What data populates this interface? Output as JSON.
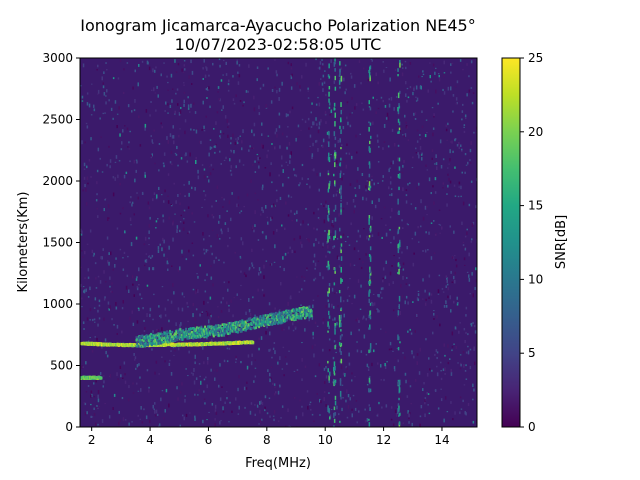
{
  "chart_data": {
    "type": "heatmap",
    "title_line1": "Ionogram Jicamarca-Ayacucho Polarization NE45°",
    "title_line2": "10/07/2023-02:58:05 UTC",
    "xlabel": "Freq(MHz)",
    "ylabel": "Kilometers(Km)",
    "xlim": [
      1.6,
      15.2
    ],
    "ylim": [
      0,
      3000
    ],
    "x_ticks": [
      "2",
      "4",
      "6",
      "8",
      "10",
      "12",
      "14"
    ],
    "y_ticks": [
      "0",
      "500",
      "1000",
      "1500",
      "2000",
      "2500",
      "3000"
    ],
    "colorbar": {
      "label": "SNR[dB]",
      "range": [
        0,
        25
      ],
      "ticks": [
        "0",
        "5",
        "10",
        "15",
        "20",
        "25"
      ],
      "colormap": "viridis"
    },
    "background_snr_db": 2,
    "traces": [
      {
        "name_hint": "E-layer echo",
        "x": [
          1.6,
          2.3
        ],
        "y": [
          410,
          410
        ],
        "snr_db": 22
      },
      {
        "name_hint": "F-layer echo base",
        "x": [
          1.6,
          2.5,
          3.5,
          4.5,
          5.5,
          6.5,
          7.5
        ],
        "y": [
          690,
          680,
          675,
          678,
          682,
          690,
          700
        ],
        "snr_db": 25
      },
      {
        "name_hint": "F-layer spread",
        "x": [
          3.5,
          5.0,
          6.5,
          8.0,
          9.5
        ],
        "y": [
          700,
          760,
          800,
          880,
          950
        ],
        "snr_db": 20
      }
    ],
    "vertical_interference_mhz": [
      10.1,
      10.3,
      10.5,
      11.5,
      12.5
    ]
  }
}
